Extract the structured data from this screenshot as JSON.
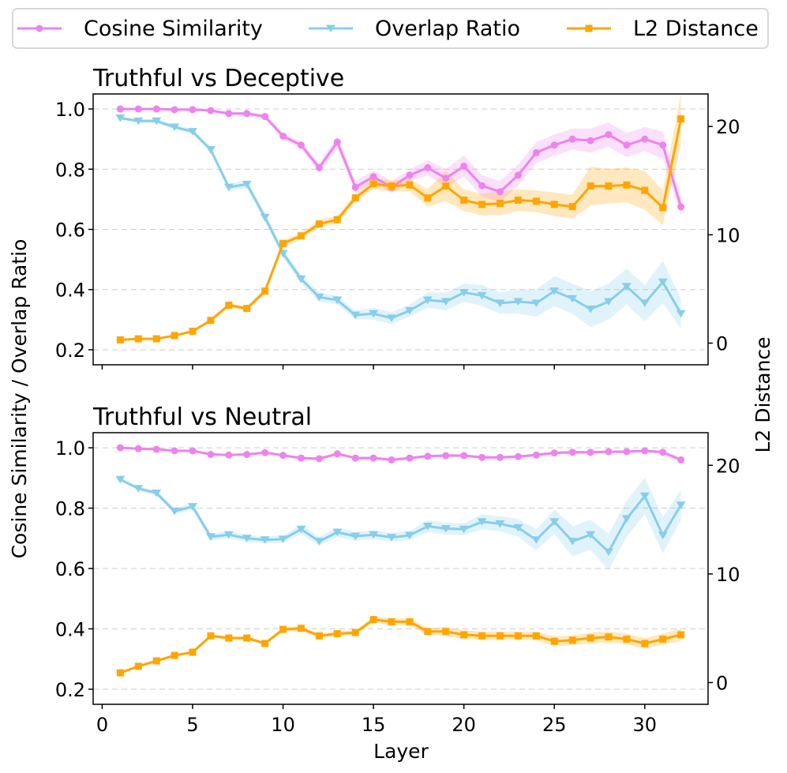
{
  "legend": [
    {
      "label": "Cosine Similarity",
      "color": "#ee82ee",
      "marker": "circle"
    },
    {
      "label": "Overlap Ratio",
      "color": "#87ceeb",
      "marker": "triangle-down"
    },
    {
      "label": "L2 Distance",
      "color": "#ffa500",
      "marker": "square"
    }
  ],
  "axes": {
    "left_label": "Cosine Similarity / Overlap Ratio",
    "right_label": "L2 Distance",
    "x_label": "Layer"
  },
  "chart_data": [
    {
      "type": "line",
      "title": "Truthful vs Deceptive",
      "x": [
        1,
        2,
        3,
        4,
        5,
        6,
        7,
        8,
        9,
        10,
        11,
        12,
        13,
        14,
        15,
        16,
        17,
        18,
        19,
        20,
        21,
        22,
        23,
        24,
        25,
        26,
        27,
        28,
        29,
        30,
        31,
        32
      ],
      "xlim": [
        -0.5,
        33.5
      ],
      "xticks": [
        0,
        5,
        10,
        15,
        20,
        25,
        30
      ],
      "show_xticklabels": false,
      "ylim_left": [
        0.15,
        1.05
      ],
      "yticks_left": [
        0.2,
        0.4,
        0.6,
        0.8,
        1.0
      ],
      "ylim_right": [
        -2,
        23
      ],
      "yticks_right": [
        0,
        10,
        20
      ],
      "grid": "horizontal dashed",
      "series": [
        {
          "name": "Cosine Similarity",
          "axis": "left",
          "color": "#ee82ee",
          "values": [
            1.0,
            1.0,
            1.0,
            0.998,
            0.998,
            0.995,
            0.985,
            0.985,
            0.975,
            0.91,
            0.88,
            0.805,
            0.89,
            0.74,
            0.775,
            0.74,
            0.78,
            0.805,
            0.77,
            0.81,
            0.745,
            0.725,
            0.78,
            0.855,
            0.88,
            0.9,
            0.895,
            0.915,
            0.88,
            0.9,
            0.88,
            0.675
          ],
          "band": [
            0.002,
            0.002,
            0.002,
            0.003,
            0.003,
            0.004,
            0.005,
            0.006,
            0.008,
            0.01,
            0.012,
            0.015,
            0.02,
            0.02,
            0.02,
            0.02,
            0.02,
            0.025,
            0.03,
            0.035,
            0.035,
            0.035,
            0.035,
            0.035,
            0.035,
            0.035,
            0.04,
            0.04,
            0.04,
            0.04,
            0.045,
            0.03
          ]
        },
        {
          "name": "Overlap Ratio",
          "axis": "left",
          "color": "#87ceeb",
          "values": [
            0.97,
            0.96,
            0.96,
            0.94,
            0.925,
            0.865,
            0.74,
            0.75,
            0.64,
            0.52,
            0.435,
            0.375,
            0.365,
            0.315,
            0.32,
            0.305,
            0.33,
            0.365,
            0.36,
            0.39,
            0.38,
            0.355,
            0.36,
            0.355,
            0.395,
            0.37,
            0.335,
            0.36,
            0.41,
            0.355,
            0.425,
            0.32
          ],
          "band": [
            0.005,
            0.006,
            0.006,
            0.008,
            0.008,
            0.01,
            0.012,
            0.012,
            0.015,
            0.015,
            0.015,
            0.015,
            0.015,
            0.015,
            0.02,
            0.02,
            0.02,
            0.025,
            0.03,
            0.03,
            0.035,
            0.035,
            0.04,
            0.045,
            0.05,
            0.05,
            0.06,
            0.06,
            0.06,
            0.06,
            0.07,
            0.05
          ]
        },
        {
          "name": "L2 Distance",
          "axis": "right",
          "color": "#ffa500",
          "values": [
            0.3,
            0.4,
            0.4,
            0.7,
            1.1,
            2.1,
            3.5,
            3.2,
            4.8,
            9.2,
            9.9,
            11.0,
            11.4,
            13.4,
            14.7,
            14.5,
            14.6,
            13.4,
            14.5,
            13.2,
            12.8,
            12.9,
            13.2,
            13.1,
            12.8,
            12.6,
            14.5,
            14.5,
            14.6,
            14.1,
            12.5,
            20.7
          ]
        },
        {
          "name": "L2 Distance (band)",
          "axis": "right",
          "color": "#ffa500",
          "values": [
            0.3,
            0.4,
            0.4,
            0.7,
            1.1,
            2.1,
            3.5,
            3.2,
            4.8,
            9.2,
            9.9,
            11.0,
            11.4,
            13.4,
            14.7,
            14.5,
            14.6,
            13.4,
            14.5,
            13.2,
            12.8,
            12.9,
            13.2,
            13.1,
            12.8,
            12.6,
            14.5,
            14.5,
            14.6,
            14.1,
            12.5,
            20.7
          ],
          "band": [
            0.05,
            0.05,
            0.05,
            0.08,
            0.1,
            0.15,
            0.2,
            0.2,
            0.25,
            0.3,
            0.3,
            0.35,
            0.35,
            0.4,
            0.5,
            0.5,
            0.6,
            0.8,
            1.4,
            1.0,
            1.0,
            1.1,
            1.0,
            1.0,
            1.1,
            1.1,
            1.8,
            1.6,
            1.6,
            1.8,
            1.6,
            2.4
          ]
        }
      ]
    },
    {
      "type": "line",
      "title": "Truthful vs Neutral",
      "x": [
        1,
        2,
        3,
        4,
        5,
        6,
        7,
        8,
        9,
        10,
        11,
        12,
        13,
        14,
        15,
        16,
        17,
        18,
        19,
        20,
        21,
        22,
        23,
        24,
        25,
        26,
        27,
        28,
        29,
        30,
        31,
        32
      ],
      "xlim": [
        -0.5,
        33.5
      ],
      "xticks": [
        0,
        5,
        10,
        15,
        20,
        25,
        30
      ],
      "show_xticklabels": true,
      "ylim_left": [
        0.15,
        1.05
      ],
      "yticks_left": [
        0.2,
        0.4,
        0.6,
        0.8,
        1.0
      ],
      "ylim_right": [
        -2,
        23
      ],
      "yticks_right": [
        0,
        10,
        20
      ],
      "grid": "horizontal dashed",
      "series": [
        {
          "name": "Cosine Similarity",
          "axis": "left",
          "color": "#ee82ee",
          "values": [
            1.0,
            0.997,
            0.995,
            0.99,
            0.99,
            0.978,
            0.976,
            0.978,
            0.984,
            0.975,
            0.966,
            0.964,
            0.98,
            0.966,
            0.966,
            0.96,
            0.966,
            0.972,
            0.974,
            0.974,
            0.968,
            0.968,
            0.971,
            0.976,
            0.983,
            0.985,
            0.985,
            0.987,
            0.987,
            0.99,
            0.985,
            0.96
          ],
          "band": [
            0.002,
            0.002,
            0.002,
            0.003,
            0.003,
            0.004,
            0.004,
            0.004,
            0.004,
            0.004,
            0.005,
            0.005,
            0.005,
            0.005,
            0.005,
            0.005,
            0.005,
            0.005,
            0.005,
            0.005,
            0.005,
            0.005,
            0.005,
            0.005,
            0.005,
            0.005,
            0.005,
            0.005,
            0.005,
            0.005,
            0.006,
            0.008
          ]
        },
        {
          "name": "Overlap Ratio",
          "axis": "left",
          "color": "#87ceeb",
          "values": [
            0.895,
            0.865,
            0.85,
            0.79,
            0.805,
            0.705,
            0.712,
            0.7,
            0.695,
            0.697,
            0.73,
            0.69,
            0.72,
            0.707,
            0.712,
            0.703,
            0.71,
            0.74,
            0.732,
            0.73,
            0.755,
            0.748,
            0.735,
            0.695,
            0.755,
            0.69,
            0.712,
            0.655,
            0.765,
            0.84,
            0.71,
            0.81
          ],
          "band": [
            0.005,
            0.006,
            0.008,
            0.01,
            0.01,
            0.012,
            0.012,
            0.012,
            0.012,
            0.012,
            0.015,
            0.015,
            0.015,
            0.015,
            0.015,
            0.015,
            0.015,
            0.02,
            0.02,
            0.02,
            0.025,
            0.025,
            0.03,
            0.035,
            0.04,
            0.05,
            0.05,
            0.06,
            0.06,
            0.06,
            0.06,
            0.05
          ]
        },
        {
          "name": "L2 Distance",
          "axis": "right",
          "color": "#ffa500",
          "values": [
            0.9,
            1.5,
            2.0,
            2.5,
            2.8,
            4.3,
            4.1,
            4.1,
            3.6,
            4.9,
            5.0,
            4.3,
            4.5,
            4.6,
            5.8,
            5.6,
            5.6,
            4.7,
            4.7,
            4.4,
            4.3,
            4.3,
            4.3,
            4.3,
            3.8,
            3.9,
            4.1,
            4.2,
            4.0,
            3.6,
            4.0,
            4.4
          ]
        },
        {
          "name": "L2 Distance (band)",
          "axis": "right",
          "color": "#ffa500",
          "values": [
            0.9,
            1.5,
            2.0,
            2.5,
            2.8,
            4.3,
            4.1,
            4.1,
            3.6,
            4.9,
            5.0,
            4.3,
            4.5,
            4.6,
            5.8,
            5.6,
            5.6,
            4.7,
            4.7,
            4.4,
            4.3,
            4.3,
            4.3,
            4.3,
            3.8,
            3.9,
            4.1,
            4.2,
            4.0,
            3.6,
            4.0,
            4.4
          ],
          "band": [
            0.05,
            0.05,
            0.08,
            0.08,
            0.1,
            0.15,
            0.15,
            0.15,
            0.15,
            0.2,
            0.2,
            0.2,
            0.2,
            0.2,
            0.3,
            0.3,
            0.3,
            0.35,
            0.4,
            0.4,
            0.4,
            0.4,
            0.4,
            0.4,
            0.45,
            0.45,
            0.5,
            0.5,
            0.5,
            0.5,
            0.5,
            0.6
          ]
        }
      ]
    }
  ]
}
